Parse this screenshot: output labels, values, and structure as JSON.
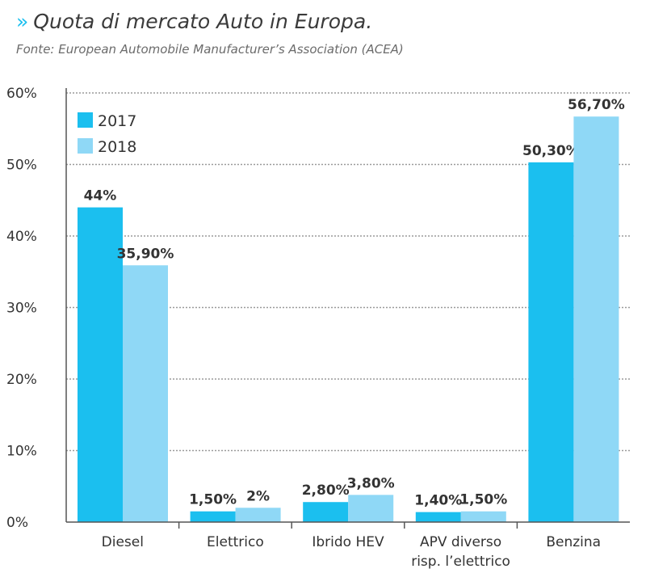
{
  "header": {
    "chevron": "»",
    "title": "Quota di mercato Auto in Europa.",
    "subtitle": "Fonte: European Automobile Manufacturer’s Association (ACEA)"
  },
  "colors": {
    "accent": "#1bbfef",
    "series_2017": "#1bbfef",
    "series_2018": "#8fd8f6",
    "grid": "#9a9a9a",
    "axis": "#555555",
    "text": "#333333"
  },
  "chart_data": {
    "type": "bar",
    "title": "Quota di mercato Auto in Europa.",
    "categories": [
      [
        "Diesel"
      ],
      [
        "Elettrico"
      ],
      [
        "Ibrido HEV"
      ],
      [
        "APV diverso",
        "risp. l’elettrico"
      ],
      [
        "Benzina"
      ]
    ],
    "series": [
      {
        "name": "2017",
        "values": [
          44,
          1.5,
          2.8,
          1.4,
          50.3
        ],
        "labels": [
          "44%",
          "1,50%",
          "2,80%",
          "1,40%",
          "50,30%"
        ]
      },
      {
        "name": "2018",
        "values": [
          35.9,
          2,
          3.8,
          1.5,
          56.7
        ],
        "labels": [
          "35,90%",
          "2%",
          "3,80%",
          "1,50%",
          "56,70%"
        ]
      }
    ],
    "ylim": [
      0,
      60
    ],
    "yticks": [
      0,
      10,
      20,
      30,
      40,
      50,
      60
    ],
    "ytick_labels": [
      "0%",
      "10%",
      "20%",
      "30%",
      "40%",
      "50%",
      "60%"
    ],
    "grid": true,
    "legend_position": "top-left"
  }
}
